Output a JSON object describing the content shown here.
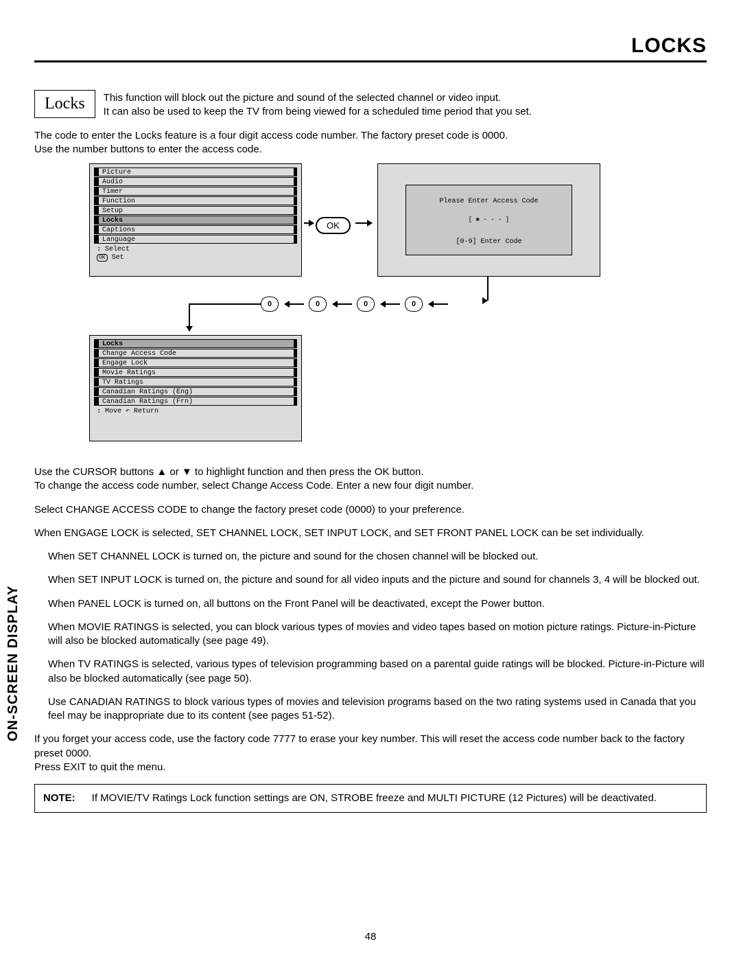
{
  "page_title": "LOCKS",
  "side_label": "ON-SCREEN DISPLAY",
  "page_number": "48",
  "locks_box_label": "Locks",
  "intro_line1": "This function will block out the picture and sound of the selected channel or video input.",
  "intro_line2": "It can also be used to keep the TV from being viewed for a scheduled time period that you set.",
  "code_para1": "The code to enter the Locks feature is a four digit access code number.  The factory preset code is 0000.",
  "code_para2": "Use the number buttons to enter the access code.",
  "main_menu": [
    "Picture",
    "Audio",
    "Timer",
    "Function",
    "Setup",
    "Locks",
    "Captions",
    "Language"
  ],
  "main_menu_highlight_index": 5,
  "main_menu_footer1": "↕ Select",
  "main_menu_footer2": "OK Set",
  "ok_label": "OK",
  "access_l1": "Please Enter Access Code",
  "access_l2": "[ ✱ - - - ]",
  "access_l3": "[0-9] Enter Code",
  "zero_label": "0",
  "locks_menu_header": "Locks",
  "locks_menu": [
    "Change Access Code",
    "Engage Lock",
    "Movie Ratings",
    "TV Ratings",
    "Canadian Ratings (Eng)",
    "Canadian Ratings (Frn)"
  ],
  "locks_menu_footer": "↕ Move  ↶ Return",
  "body": {
    "p1": "Use the CURSOR buttons ▲ or ▼ to highlight function and then press the OK button.",
    "p2": "To change the access code number, select Change Access Code.  Enter a new four digit number.",
    "p3": "Select CHANGE ACCESS CODE to change the factory preset code (0000) to your preference.",
    "p4": "When ENGAGE LOCK is selected, SET CHANNEL LOCK, SET INPUT LOCK, and SET FRONT PANEL LOCK can be set individually.",
    "p5": "When SET CHANNEL LOCK is turned on, the picture and sound for the chosen channel will be blocked out.",
    "p6": "When SET INPUT LOCK is turned on, the picture and sound for all video inputs and the picture and sound for channels 3, 4 will be blocked out.",
    "p7": "When PANEL LOCK is turned on, all buttons on the Front Panel will be deactivated, except the Power button.",
    "p8": "When MOVIE RATINGS is selected, you can block various types of movies and video tapes based on motion picture ratings.  Picture-in-Picture will also be blocked automatically (see page 49).",
    "p9": "When TV RATINGS is selected, various types of television programming based on a parental guide ratings will be blocked.  Picture-in-Picture will also be blocked automatically (see page 50).",
    "p10": "Use CANADIAN RATINGS to block various types of movies and television programs based on the two rating systems used in Canada that you feel may be inappropriate due to its content (see pages 51-52).",
    "p11": "If you forget your access code, use the factory code 7777 to erase your key number. This will reset the access code number back to the factory preset 0000.",
    "p12": "Press EXIT to quit the menu."
  },
  "note_label": "NOTE:",
  "note_text": "If MOVIE/TV Ratings Lock function settings are ON, STROBE freeze and MULTI PICTURE (12 Pictures) will be deactivated."
}
